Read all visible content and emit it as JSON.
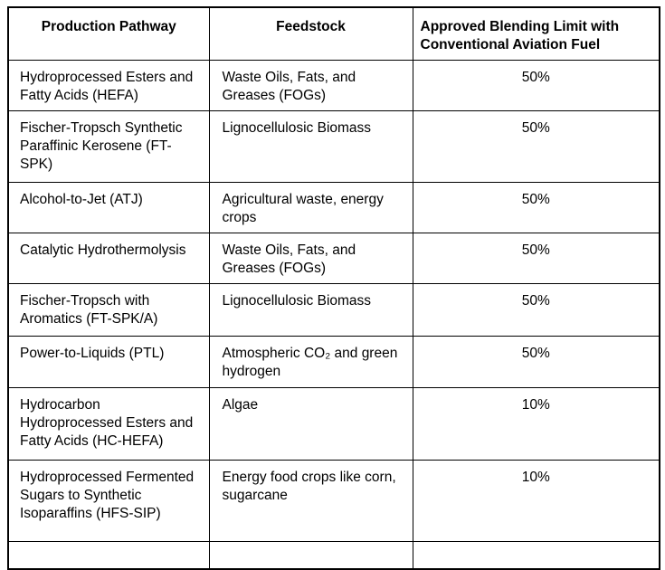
{
  "table": {
    "columns": [
      {
        "label": "Production Pathway"
      },
      {
        "label": "Feedstock"
      },
      {
        "label": "Approved Blending Limit with Conventional Aviation Fuel"
      }
    ],
    "rows": [
      {
        "pathway": "Hydroprocessed Esters and Fatty Acids (HEFA)",
        "feedstock": "Waste Oils, Fats, and Greases (FOGs)",
        "blending_limit": "50%"
      },
      {
        "pathway": "Fischer-Tropsch Synthetic Paraffinic Kerosene (FT-SPK)",
        "feedstock": "Lignocellulosic Biomass",
        "blending_limit": "50%"
      },
      {
        "pathway": "Alcohol-to-Jet (ATJ)",
        "feedstock": "Agricultural waste, energy crops",
        "blending_limit": "50%"
      },
      {
        "pathway": "Catalytic Hydrothermolysis",
        "feedstock": "Waste Oils, Fats, and Greases (FOGs)",
        "blending_limit": "50%"
      },
      {
        "pathway": "Fischer-Tropsch with Aromatics (FT-SPK/A)",
        "feedstock": "Lignocellulosic Biomass",
        "blending_limit": "50%"
      },
      {
        "pathway": "Power-to-Liquids (PTL)",
        "feedstock": "Atmospheric CO₂ and green hydrogen",
        "blending_limit": "50%"
      },
      {
        "pathway": "Hydrocarbon Hydroprocessed Esters and Fatty Acids (HC-HEFA)",
        "feedstock": "Algae",
        "blending_limit": "10%"
      },
      {
        "pathway": "Hydroprocessed Fermented Sugars to Synthetic Isoparaffins (HFS-SIP)",
        "feedstock": "Energy food crops like corn, sugarcane",
        "blending_limit": "10%"
      }
    ],
    "colors": {
      "border": "#000000",
      "text": "#000000",
      "background": "#ffffff"
    }
  }
}
